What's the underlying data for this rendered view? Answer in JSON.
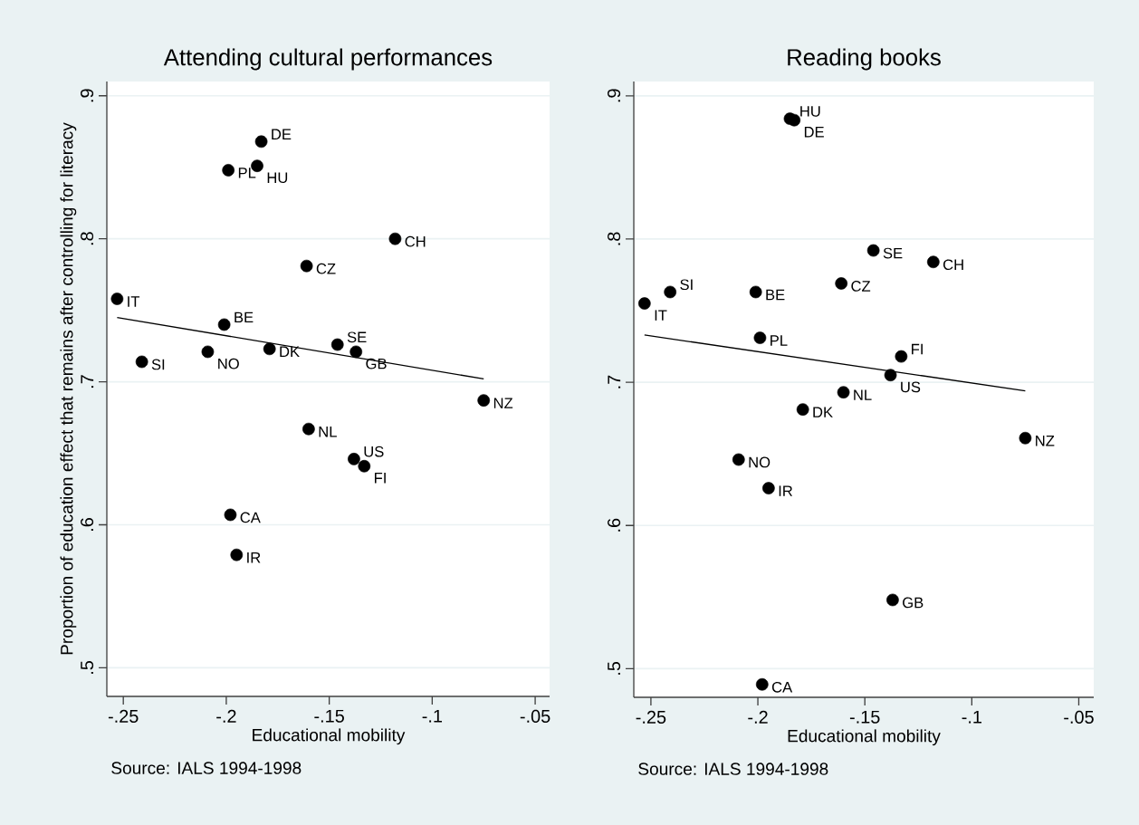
{
  "chart_data": [
    {
      "type": "scatter",
      "title": "Attending cultural performances",
      "xlabel": "Educational mobility",
      "ylabel": "Proportion of education effect that remains after controlling for literacy",
      "annotations": [
        "Source: IALS 1994-1998"
      ],
      "xlim": [
        -0.258,
        -0.043
      ],
      "ylim": [
        0.48,
        0.91
      ],
      "xticks": [
        {
          "value": -0.25,
          "label": "-.25"
        },
        {
          "value": -0.2,
          "label": "-.2"
        },
        {
          "value": -0.15,
          "label": "-.15"
        },
        {
          "value": -0.1,
          "label": "-.1"
        },
        {
          "value": -0.05,
          "label": "-.05"
        }
      ],
      "yticks": [
        {
          "value": 0.5,
          "label": ".5"
        },
        {
          "value": 0.6,
          "label": ".6"
        },
        {
          "value": 0.7,
          "label": ".7"
        },
        {
          "value": 0.8,
          "label": ".8"
        },
        {
          "value": 0.9,
          "label": ".9"
        }
      ],
      "grid": "y",
      "series": [
        {
          "color": "#000000",
          "marker": "circle",
          "x": [
            -0.253,
            -0.241,
            -0.199,
            -0.201,
            -0.209,
            -0.198,
            -0.195,
            -0.185,
            -0.183,
            -0.179,
            -0.161,
            -0.16,
            -0.146,
            -0.137,
            -0.138,
            -0.133,
            -0.118,
            -0.075
          ],
          "values": [
            0.758,
            0.714,
            0.848,
            0.74,
            0.721,
            0.607,
            0.579,
            0.851,
            0.868,
            0.723,
            0.781,
            0.667,
            0.726,
            0.721,
            0.646,
            0.641,
            0.8,
            0.687
          ],
          "value_labels": [
            "IT",
            "SI",
            "PL",
            "BE",
            "NO",
            "CA",
            "IR",
            "HU",
            "DE",
            "DK",
            "CZ",
            "NL",
            "SE",
            "GB",
            "US",
            "FI",
            "CH",
            "NZ"
          ]
        },
        {
          "type": "line",
          "color": "#000000",
          "x": [
            -0.253,
            -0.075
          ],
          "values": [
            0.745,
            0.702
          ]
        }
      ]
    },
    {
      "type": "scatter",
      "title": "Reading books",
      "xlabel": "Educational mobility",
      "annotations": [
        "Source: IALS 1994-1998"
      ],
      "xlim": [
        -0.258,
        -0.043
      ],
      "ylim": [
        0.48,
        0.91
      ],
      "xticks": [
        {
          "value": -0.25,
          "label": "-.25"
        },
        {
          "value": -0.2,
          "label": "-.2"
        },
        {
          "value": -0.15,
          "label": "-.15"
        },
        {
          "value": -0.1,
          "label": "-.1"
        },
        {
          "value": -0.05,
          "label": "-.05"
        }
      ],
      "yticks": [
        {
          "value": 0.5,
          "label": ".5"
        },
        {
          "value": 0.6,
          "label": ".6"
        },
        {
          "value": 0.7,
          "label": ".7"
        },
        {
          "value": 0.8,
          "label": ".8"
        },
        {
          "value": 0.9,
          "label": ".9"
        }
      ],
      "grid": "y",
      "series": [
        {
          "color": "#000000",
          "marker": "circle",
          "x": [
            -0.253,
            -0.241,
            -0.199,
            -0.201,
            -0.209,
            -0.198,
            -0.195,
            -0.185,
            -0.183,
            -0.179,
            -0.161,
            -0.16,
            -0.146,
            -0.137,
            -0.138,
            -0.133,
            -0.118,
            -0.075
          ],
          "values": [
            0.755,
            0.763,
            0.731,
            0.763,
            0.646,
            0.489,
            0.626,
            0.884,
            0.883,
            0.681,
            0.769,
            0.693,
            0.792,
            0.548,
            0.705,
            0.718,
            0.784,
            0.661
          ],
          "value_labels": [
            "IT",
            "SI",
            "PL",
            "BE",
            "NO",
            "CA",
            "IR",
            "HU",
            "DE",
            "DK",
            "CZ",
            "NL",
            "SE",
            "GB",
            "US",
            "FI",
            "CH",
            "NZ"
          ]
        },
        {
          "type": "line",
          "color": "#000000",
          "x": [
            -0.253,
            -0.075
          ],
          "values": [
            0.733,
            0.694
          ]
        }
      ]
    }
  ]
}
